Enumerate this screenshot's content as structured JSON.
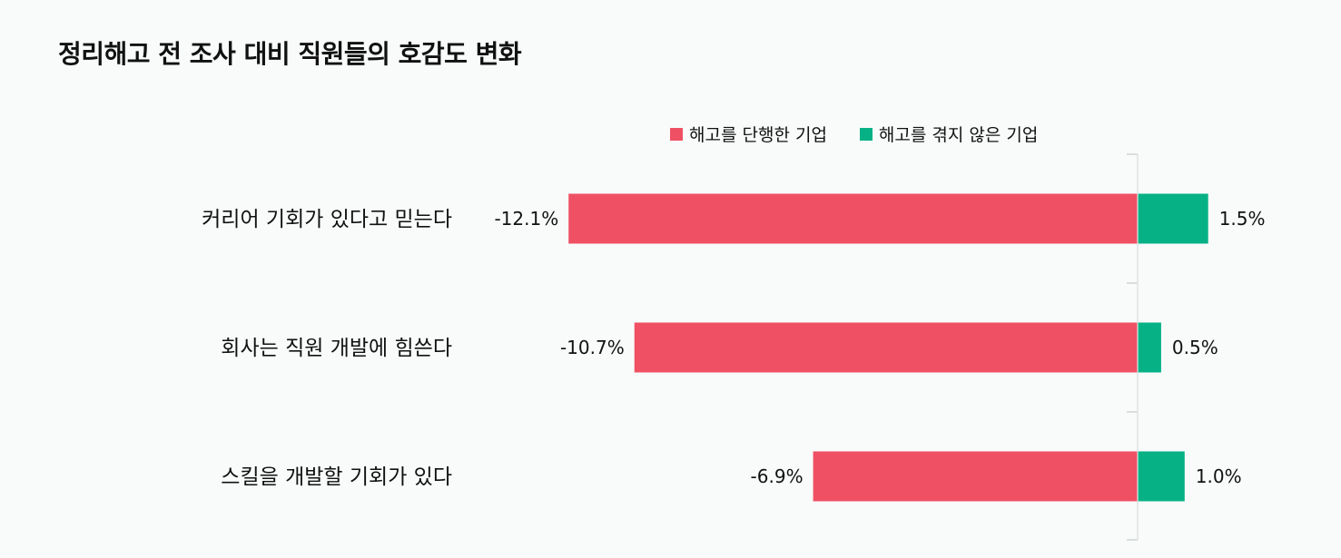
{
  "chart_data": {
    "type": "bar",
    "orientation": "horizontal",
    "title": "정리해고 전 조사 대비 직원들의 호감도 변화",
    "categories": [
      "커리어 기회가 있다고 믿는다",
      "회사는 직원 개발에 힘쓴다",
      "스킬을 개발할 기회가 있다"
    ],
    "series": [
      {
        "name": "해고를 단행한 기업",
        "values": [
          -12.1,
          -10.7,
          -6.9
        ],
        "color": "#ef5064",
        "labels": [
          "-12.1%",
          "-10.7%",
          "-6.9%"
        ]
      },
      {
        "name": "해고를 겪지 않은 기업",
        "values": [
          1.5,
          0.5,
          1.0
        ],
        "color": "#07b186",
        "labels": [
          "1.5%",
          "0.5%",
          "1.0%"
        ]
      }
    ],
    "xlim": [
      -12.1,
      1.5
    ],
    "legend_position": "top-right",
    "grid": false
  }
}
